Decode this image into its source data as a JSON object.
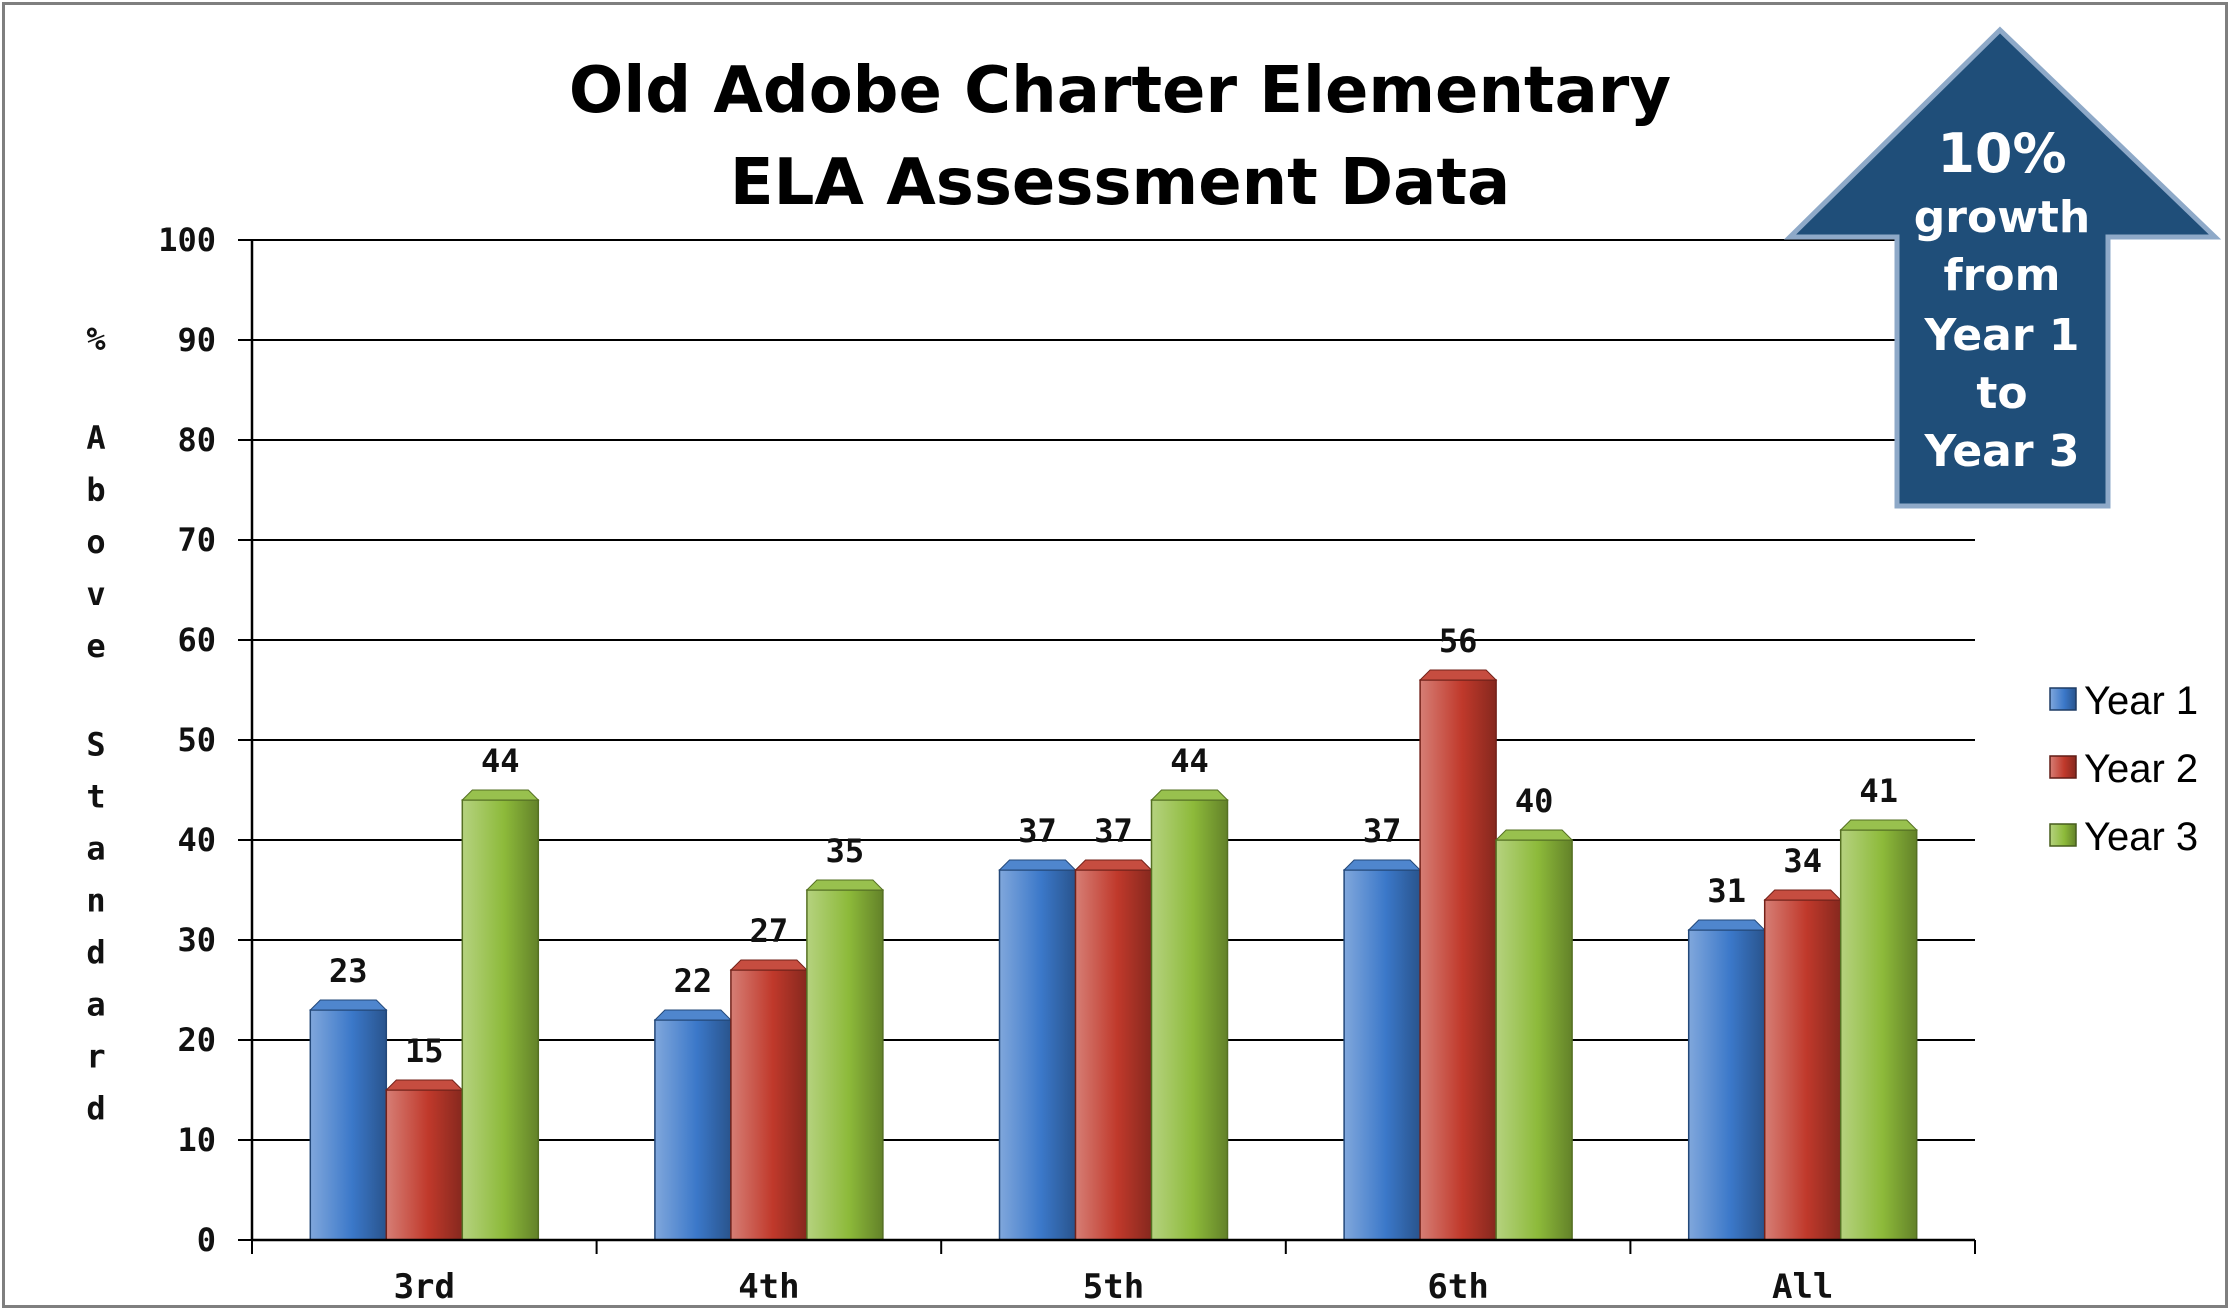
{
  "chart_data": {
    "type": "bar",
    "title_lines": [
      "Old Adobe Charter Elementary",
      "ELA Assessment Data"
    ],
    "ylabel": "% Above Standard",
    "xlabel": "",
    "categories": [
      "3rd",
      "4th",
      "5th",
      "6th",
      "All"
    ],
    "ylim": [
      0,
      100
    ],
    "yticks": [
      0,
      10,
      20,
      30,
      40,
      50,
      60,
      70,
      80,
      90,
      100
    ],
    "grid": true,
    "legend_position": "right",
    "series": [
      {
        "name": "Year 1",
        "color": "#3b78c9",
        "values": [
          23,
          22,
          37,
          37,
          31
        ]
      },
      {
        "name": "Year 2",
        "color": "#c0392b",
        "values": [
          15,
          27,
          37,
          56,
          34
        ]
      },
      {
        "name": "Year 3",
        "color": "#8dba3a",
        "values": [
          44,
          35,
          44,
          40,
          41
        ]
      }
    ],
    "annotation": {
      "shape": "up-arrow",
      "color": "#1f4e79",
      "lines": [
        "10%",
        "growth",
        "from",
        "Year 1",
        "to",
        "Year 3"
      ]
    }
  }
}
